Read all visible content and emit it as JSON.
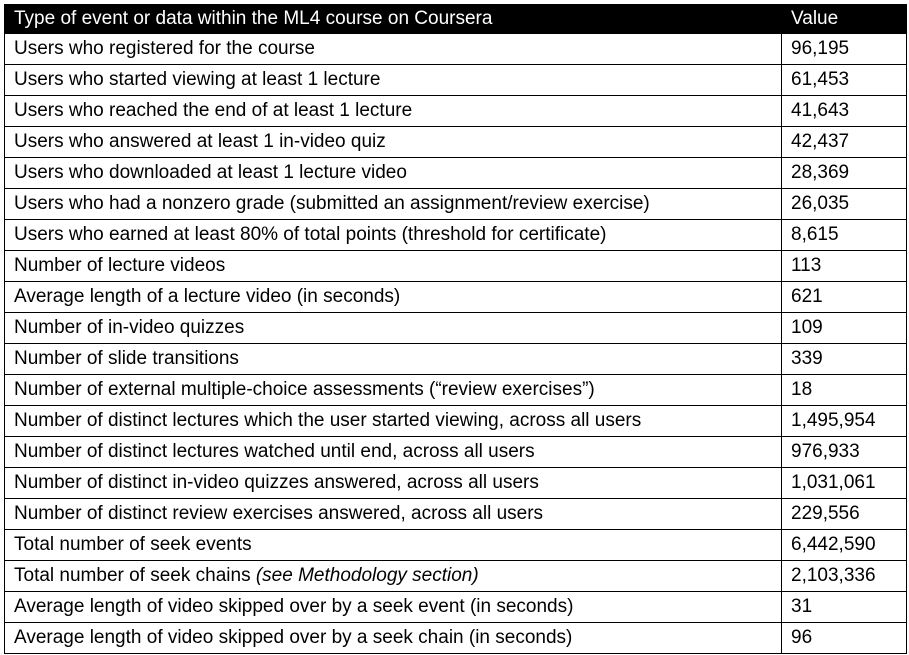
{
  "table": {
    "headers": {
      "metric": "Type of event or data within the ML4 course on Coursera",
      "value": "Value"
    },
    "rows": [
      {
        "label": "Users who registered for the course",
        "value": "96,195"
      },
      {
        "label": "Users who started viewing at least 1 lecture",
        "value": "61,453"
      },
      {
        "label": "Users who reached the end of at least 1 lecture",
        "value": "41,643"
      },
      {
        "label": "Users who answered at least 1 in-video quiz",
        "value": "42,437"
      },
      {
        "label": "Users who downloaded at least 1 lecture video",
        "value": "28,369"
      },
      {
        "label": "Users who had a nonzero grade (submitted an assignment/review exercise)",
        "value": "26,035"
      },
      {
        "label": "Users who earned at least 80% of total points (threshold for certificate)",
        "value": "8,615"
      },
      {
        "label": "Number of lecture videos",
        "value": "113"
      },
      {
        "label": "Average length of a lecture video (in seconds)",
        "value": "621"
      },
      {
        "label": "Number of in-video quizzes",
        "value": "109"
      },
      {
        "label": "Number of slide transitions",
        "value": "339"
      },
      {
        "label": "Number of external multiple-choice assessments (“review exercises”)",
        "value": "18"
      },
      {
        "label": "Number of distinct lectures which the user started viewing, across all users",
        "value": "1,495,954"
      },
      {
        "label": "Number of distinct lectures watched until end, across all users",
        "value": "976,933"
      },
      {
        "label": "Number of distinct in-video quizzes answered, across all users",
        "value": "1,031,061"
      },
      {
        "label": "Number of distinct review exercises answered, across all users",
        "value": "229,556"
      },
      {
        "label": "Total number of seek events",
        "value": "6,442,590"
      },
      {
        "label": "Total number of seek chains ",
        "note": "(see Methodology section)",
        "value": "2,103,336"
      },
      {
        "label": "Average length of video skipped over by a seek event (in seconds)",
        "value": "31"
      },
      {
        "label": "Average length of video skipped over by a seek chain (in seconds)",
        "value": "96"
      }
    ]
  }
}
